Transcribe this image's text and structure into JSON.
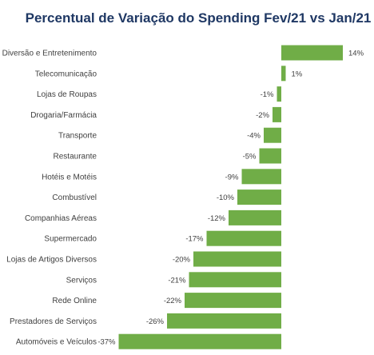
{
  "chart_data": {
    "type": "bar",
    "orientation": "horizontal",
    "title": "Percentual de Variação do Spending  Fev/21 vs Jan/21",
    "xlabel": "",
    "ylabel": "",
    "grid": false,
    "color": "#70ad47",
    "title_color": "#1f3864",
    "categories": [
      "Diversão e Entretenimento",
      "Telecomunicação",
      "Lojas de Roupas",
      "Drogaria/Farmácia",
      "Transporte",
      "Restaurante",
      "Hotéis e Motéis",
      "Combustível",
      "Companhias Aéreas",
      "Supermercado",
      "Lojas de Artigos Diversos",
      "Serviços",
      "Rede Online",
      "Prestadores de Serviços",
      "Automóveis e Veículos"
    ],
    "values": [
      14,
      1,
      -1,
      -2,
      -4,
      -5,
      -9,
      -10,
      -12,
      -17,
      -20,
      -21,
      -22,
      -26,
      -37
    ],
    "value_labels": [
      "14%",
      "1%",
      "-1%",
      "-2%",
      "-4%",
      "-5%",
      "-9%",
      "-10%",
      "-12%",
      "-17%",
      "-20%",
      "-21%",
      "-22%",
      "-26%",
      "-37%"
    ]
  }
}
